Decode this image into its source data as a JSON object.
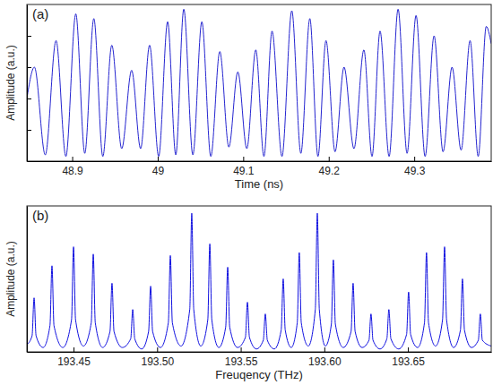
{
  "chart_data": [
    {
      "type": "line",
      "annotation": "(a)",
      "x_label": "Time (ns)",
      "y_label": "Amplitude (a.u.)",
      "color": "#2424d0",
      "xlim": [
        48.847,
        49.39
      ],
      "ylim": [
        0,
        1
      ],
      "xticks": [
        48.9,
        49,
        49.1,
        49.2,
        49.3
      ],
      "yticks": [
        0.2,
        0.4,
        0.6,
        0.8
      ],
      "tick_labels": "x",
      "x": [
        48.847,
        48.8558,
        48.8685,
        48.8811,
        48.8926,
        48.9042,
        48.9147,
        48.9253,
        48.9358,
        48.9463,
        48.9579,
        48.9695,
        48.98,
        48.9905,
        49.0011,
        49.0116,
        49.0211,
        49.0305,
        49.0411,
        49.0516,
        49.0621,
        49.0726,
        49.0832,
        49.0937,
        49.1042,
        49.1147,
        49.1242,
        49.1337,
        49.1453,
        49.1568,
        49.1674,
        49.1779,
        49.1874,
        49.1968,
        49.2074,
        49.2179,
        49.2295,
        49.2411,
        49.2506,
        49.26,
        49.2706,
        49.2811,
        49.2916,
        49.3021,
        49.3127,
        49.3232,
        49.3337,
        49.3442,
        49.3548,
        49.3653,
        49.3748,
        49.3842,
        49.39
      ],
      "values": [
        0.4,
        0.6,
        0.04,
        0.77,
        0.03,
        0.94,
        0.05,
        0.91,
        0.03,
        0.74,
        0.08,
        0.58,
        0.08,
        0.74,
        0.03,
        0.89,
        0.04,
        0.97,
        0.04,
        0.89,
        0.03,
        0.7,
        0.09,
        0.57,
        0.08,
        0.71,
        0.03,
        0.83,
        0.03,
        0.96,
        0.05,
        0.91,
        0.03,
        0.77,
        0.06,
        0.6,
        0.08,
        0.71,
        0.03,
        0.83,
        0.03,
        0.97,
        0.05,
        0.93,
        0.03,
        0.8,
        0.06,
        0.6,
        0.07,
        0.77,
        0.03,
        0.86,
        0.75
      ]
    },
    {
      "type": "line",
      "annotation": "(b)",
      "x_label": "Freuqency (THz)",
      "y_label": "Amplitude (a.u.)",
      "color": "#1010e0",
      "xlim": [
        193.4221,
        193.6998
      ],
      "ylim": [
        0,
        1
      ],
      "xticks": [
        193.45,
        {
          "value": 193.5,
          "label": "193.50"
        },
        193.55,
        {
          "value": 193.6,
          "label": "193.60"
        },
        193.65
      ],
      "tick_labels": "x",
      "x": [
        193.4221,
        193.4252,
        193.4264,
        193.4276,
        193.4318,
        193.4359,
        193.4371,
        193.4383,
        193.4436,
        193.4488,
        193.45,
        193.4512,
        193.4559,
        193.4606,
        193.4618,
        193.463,
        193.4674,
        193.4718,
        193.473,
        193.4742,
        193.4792,
        193.4842,
        193.4854,
        193.4866,
        193.4908,
        193.4949,
        193.4961,
        193.4973,
        193.502,
        193.5067,
        193.5079,
        193.5091,
        193.5143,
        193.5195,
        193.5207,
        193.5219,
        193.5261,
        193.5303,
        193.5315,
        193.5327,
        193.5369,
        193.541,
        193.5422,
        193.5434,
        193.5481,
        193.5528,
        193.554,
        193.5552,
        193.5594,
        193.5635,
        193.5647,
        193.5659,
        193.5701,
        193.5742,
        193.5754,
        193.5766,
        193.5802,
        193.5838,
        193.585,
        193.5862,
        193.5904,
        193.5946,
        193.5958,
        193.597,
        193.6006,
        193.6042,
        193.6054,
        193.6066,
        193.6113,
        193.616,
        193.6172,
        193.6184,
        193.6226,
        193.6267,
        193.6279,
        193.6291,
        193.6333,
        193.6374,
        193.6386,
        193.6398,
        193.6445,
        193.6492,
        193.6504,
        193.6516,
        193.6558,
        193.6599,
        193.6611,
        193.6623,
        193.6665,
        193.6707,
        193.6719,
        193.6731,
        193.6773,
        193.6814,
        193.6826,
        193.6838,
        193.688,
        193.6921,
        193.6933,
        193.6945,
        193.6998
      ],
      "values": [
        0.05,
        0.11,
        0.37,
        0.11,
        0.03,
        0.18,
        0.59,
        0.18,
        0.03,
        0.22,
        0.72,
        0.22,
        0.04,
        0.2,
        0.67,
        0.2,
        0.03,
        0.14,
        0.47,
        0.14,
        0.03,
        0.09,
        0.29,
        0.09,
        0.02,
        0.14,
        0.45,
        0.14,
        0.03,
        0.2,
        0.66,
        0.2,
        0.04,
        0.29,
        0.95,
        0.29,
        0.04,
        0.22,
        0.74,
        0.22,
        0.03,
        0.17,
        0.58,
        0.17,
        0.03,
        0.1,
        0.34,
        0.1,
        0.02,
        0.08,
        0.26,
        0.08,
        0.02,
        0.15,
        0.5,
        0.15,
        0.03,
        0.2,
        0.68,
        0.2,
        0.04,
        0.29,
        0.95,
        0.29,
        0.04,
        0.19,
        0.63,
        0.19,
        0.03,
        0.14,
        0.47,
        0.14,
        0.03,
        0.08,
        0.26,
        0.08,
        0.02,
        0.09,
        0.29,
        0.09,
        0.02,
        0.12,
        0.41,
        0.12,
        0.03,
        0.2,
        0.68,
        0.2,
        0.04,
        0.22,
        0.72,
        0.22,
        0.03,
        0.15,
        0.5,
        0.15,
        0.03,
        0.08,
        0.26,
        0.08,
        0.04
      ]
    }
  ]
}
